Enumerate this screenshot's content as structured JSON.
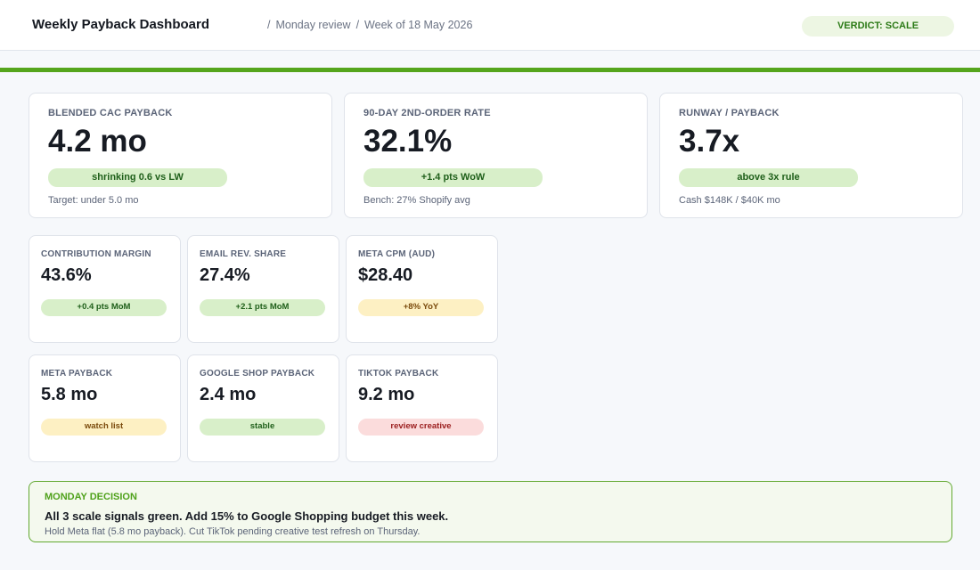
{
  "header": {
    "title": "Weekly Payback Dashboard",
    "breadcrumb": [
      "Monday review",
      "Week of 18 May 2026"
    ],
    "verdict": "VERDICT: SCALE"
  },
  "colors": {
    "accent": "#55a51c",
    "pill_green": "#d8efc9",
    "pill_yellow": "#fdf0c3",
    "pill_red": "#fbdcdc"
  },
  "kpis": [
    {
      "label": "BLENDED CAC PAYBACK",
      "value": "4.2 mo",
      "badge": "shrinking 0.6 vs LW",
      "badge_status": "green",
      "note": "Target: under 5.0 mo"
    },
    {
      "label": "90-DAY 2ND-ORDER RATE",
      "value": "32.1%",
      "badge": "+1.4 pts WoW",
      "badge_status": "green",
      "note": "Bench: 27% Shopify avg"
    },
    {
      "label": "RUNWAY / PAYBACK",
      "value": "3.7x",
      "badge": "above 3x rule",
      "badge_status": "green",
      "note": "Cash $148K / $40K mo"
    }
  ],
  "metrics": [
    {
      "label": "CONTRIBUTION MARGIN",
      "value": "43.6%",
      "badge": "+0.4 pts MoM",
      "badge_status": "green"
    },
    {
      "label": "EMAIL REV. SHARE",
      "value": "27.4%",
      "badge": "+2.1 pts MoM",
      "badge_status": "green"
    },
    {
      "label": "META CPM (AUD)",
      "value": "$28.40",
      "badge": "+8% YoY",
      "badge_status": "yellow"
    }
  ],
  "channels": [
    {
      "label": "META PAYBACK",
      "value": "5.8 mo",
      "badge": "watch list",
      "badge_status": "yellow"
    },
    {
      "label": "GOOGLE SHOP PAYBACK",
      "value": "2.4 mo",
      "badge": "stable",
      "badge_status": "green"
    },
    {
      "label": "TIKTOK PAYBACK",
      "value": "9.2 mo",
      "badge": "review creative",
      "badge_status": "red"
    }
  ],
  "decision": {
    "label": "MONDAY DECISION",
    "headline": "All 3 scale signals green. Add 15% to Google Shopping budget this week.",
    "detail": "Hold Meta flat (5.8 mo payback). Cut TikTok pending creative test refresh on Thursday."
  }
}
